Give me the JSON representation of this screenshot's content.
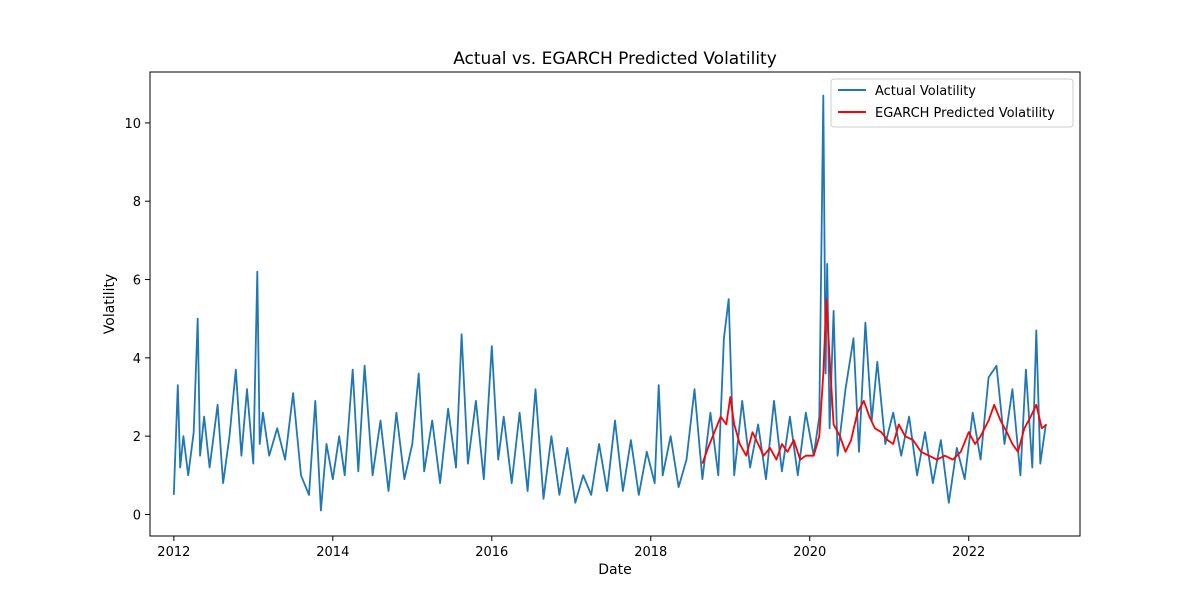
{
  "chart_data": {
    "type": "line",
    "title": "Actual vs. EGARCH Predicted Volatility",
    "xlabel": "Date",
    "ylabel": "Volatility",
    "xlim": [
      2011.7,
      2023.4
    ],
    "ylim": [
      -0.55,
      11.3
    ],
    "x_ticks": [
      2012,
      2014,
      2016,
      2018,
      2020,
      2022
    ],
    "x_tick_labels": [
      "2012",
      "2014",
      "2016",
      "2018",
      "2020",
      "2022"
    ],
    "y_ticks": [
      0,
      2,
      4,
      6,
      8,
      10
    ],
    "y_tick_labels": [
      "0",
      "2",
      "4",
      "6",
      "8",
      "10"
    ],
    "grid": false,
    "legend_position": "top-right",
    "series": [
      {
        "name": "Actual Volatility",
        "color": "#1f77b4",
        "x": [
          2012.0,
          2012.05,
          2012.08,
          2012.12,
          2012.18,
          2012.25,
          2012.3,
          2012.33,
          2012.38,
          2012.45,
          2012.55,
          2012.62,
          2012.7,
          2012.78,
          2012.85,
          2012.92,
          2013.0,
          2013.05,
          2013.08,
          2013.12,
          2013.2,
          2013.3,
          2013.4,
          2013.5,
          2013.6,
          2013.7,
          2013.78,
          2013.85,
          2013.92,
          2014.0,
          2014.08,
          2014.15,
          2014.25,
          2014.32,
          2014.4,
          2014.5,
          2014.6,
          2014.7,
          2014.8,
          2014.9,
          2015.0,
          2015.08,
          2015.15,
          2015.25,
          2015.35,
          2015.45,
          2015.55,
          2015.62,
          2015.7,
          2015.8,
          2015.9,
          2016.0,
          2016.08,
          2016.15,
          2016.25,
          2016.35,
          2016.45,
          2016.55,
          2016.65,
          2016.75,
          2016.85,
          2016.95,
          2017.05,
          2017.15,
          2017.25,
          2017.35,
          2017.45,
          2017.55,
          2017.65,
          2017.75,
          2017.85,
          2017.95,
          2018.05,
          2018.1,
          2018.15,
          2018.25,
          2018.35,
          2018.45,
          2018.55,
          2018.65,
          2018.75,
          2018.85,
          2018.92,
          2018.98,
          2019.05,
          2019.15,
          2019.25,
          2019.35,
          2019.45,
          2019.55,
          2019.65,
          2019.75,
          2019.85,
          2019.95,
          2020.05,
          2020.12,
          2020.17,
          2020.2,
          2020.22,
          2020.25,
          2020.3,
          2020.35,
          2020.45,
          2020.55,
          2020.62,
          2020.7,
          2020.78,
          2020.85,
          2020.95,
          2021.05,
          2021.15,
          2021.25,
          2021.35,
          2021.45,
          2021.55,
          2021.65,
          2021.75,
          2021.85,
          2021.95,
          2022.05,
          2022.15,
          2022.25,
          2022.35,
          2022.45,
          2022.55,
          2022.65,
          2022.72,
          2022.8,
          2022.85,
          2022.9,
          2022.97
        ],
        "values": [
          0.5,
          3.3,
          1.2,
          2.0,
          1.0,
          2.1,
          5.0,
          1.5,
          2.5,
          1.2,
          2.8,
          0.8,
          2.0,
          3.7,
          1.5,
          3.2,
          1.3,
          6.2,
          1.8,
          2.6,
          1.5,
          2.2,
          1.4,
          3.1,
          1.0,
          0.5,
          2.9,
          0.1,
          1.8,
          0.9,
          2.0,
          1.0,
          3.7,
          1.1,
          3.8,
          1.0,
          2.4,
          0.6,
          2.6,
          0.9,
          1.8,
          3.6,
          1.1,
          2.4,
          0.8,
          2.7,
          1.2,
          4.6,
          1.3,
          2.9,
          0.9,
          4.3,
          1.4,
          2.5,
          0.8,
          2.6,
          0.6,
          3.2,
          0.4,
          2.0,
          0.5,
          1.7,
          0.3,
          1.0,
          0.5,
          1.8,
          0.6,
          2.4,
          0.6,
          1.9,
          0.5,
          1.6,
          0.8,
          3.3,
          1.0,
          2.0,
          0.7,
          1.4,
          3.2,
          0.9,
          2.6,
          1.0,
          4.5,
          5.5,
          1.0,
          2.9,
          1.2,
          2.3,
          0.9,
          2.9,
          1.1,
          2.5,
          1.0,
          2.6,
          1.5,
          2.5,
          10.7,
          3.6,
          6.4,
          2.2,
          5.2,
          1.5,
          3.2,
          4.5,
          1.6,
          4.9,
          2.4,
          3.9,
          1.8,
          2.6,
          1.5,
          2.5,
          1.0,
          2.1,
          0.8,
          1.9,
          0.3,
          1.7,
          0.9,
          2.6,
          1.4,
          3.5,
          3.8,
          1.8,
          3.2,
          1.0,
          3.7,
          1.2,
          4.7,
          1.3,
          2.3
        ]
      },
      {
        "name": "EGARCH Predicted Volatility",
        "color": "#ff0000",
        "x": [
          2018.65,
          2018.72,
          2018.8,
          2018.88,
          2018.95,
          2019.0,
          2019.05,
          2019.12,
          2019.2,
          2019.28,
          2019.35,
          2019.42,
          2019.5,
          2019.58,
          2019.65,
          2019.72,
          2019.8,
          2019.88,
          2019.95,
          2020.05,
          2020.12,
          2020.17,
          2020.21,
          2020.25,
          2020.3,
          2020.38,
          2020.45,
          2020.52,
          2020.6,
          2020.68,
          2020.75,
          2020.82,
          2020.9,
          2020.98,
          2021.05,
          2021.12,
          2021.2,
          2021.3,
          2021.4,
          2021.5,
          2021.6,
          2021.7,
          2021.8,
          2021.9,
          2022.0,
          2022.08,
          2022.15,
          2022.25,
          2022.32,
          2022.4,
          2022.48,
          2022.55,
          2022.62,
          2022.7,
          2022.78,
          2022.85,
          2022.92,
          2022.98
        ],
        "values": [
          1.3,
          1.7,
          2.1,
          2.5,
          2.3,
          3.0,
          2.3,
          1.8,
          1.5,
          2.1,
          1.8,
          1.5,
          1.7,
          1.4,
          1.8,
          1.6,
          1.9,
          1.4,
          1.5,
          1.5,
          2.0,
          3.6,
          5.5,
          4.0,
          2.3,
          2.0,
          1.6,
          1.9,
          2.6,
          2.9,
          2.5,
          2.2,
          2.1,
          1.9,
          1.8,
          2.3,
          2.0,
          1.9,
          1.6,
          1.5,
          1.4,
          1.5,
          1.4,
          1.6,
          2.1,
          1.8,
          2.0,
          2.4,
          2.8,
          2.4,
          2.1,
          1.8,
          1.6,
          2.2,
          2.5,
          2.8,
          2.2,
          2.3
        ]
      }
    ]
  }
}
